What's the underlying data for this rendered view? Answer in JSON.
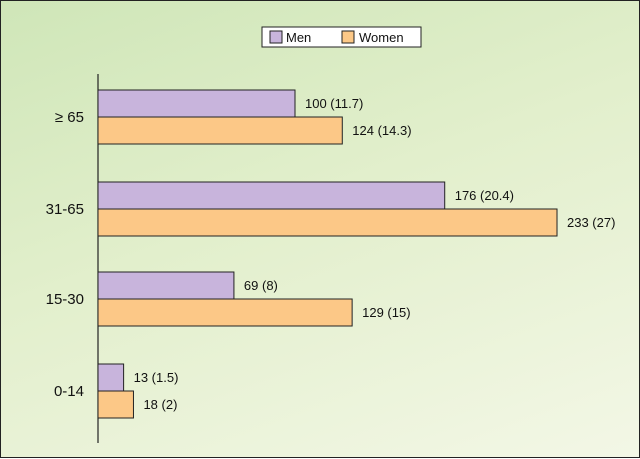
{
  "chart_data": {
    "type": "bar",
    "orientation": "horizontal",
    "categories": [
      "≥ 65",
      "31-65",
      "15-30",
      "0-14"
    ],
    "series": [
      {
        "name": "Men",
        "color": "#c8b4dc",
        "values": [
          100,
          176,
          69,
          13
        ],
        "labels": [
          "100 (11.7)",
          "176 (20.4)",
          "69 (8)",
          "13 (1.5)"
        ]
      },
      {
        "name": "Women",
        "color": "#fcc887",
        "values": [
          124,
          233,
          129,
          18
        ],
        "labels": [
          "124 (14.3)",
          "233 (27)",
          "129 (15)",
          "18 (2)"
        ]
      }
    ],
    "title": "",
    "xlabel": "",
    "ylabel": "",
    "xlim": [
      0,
      240
    ],
    "grid": false,
    "legend": "top-center"
  }
}
